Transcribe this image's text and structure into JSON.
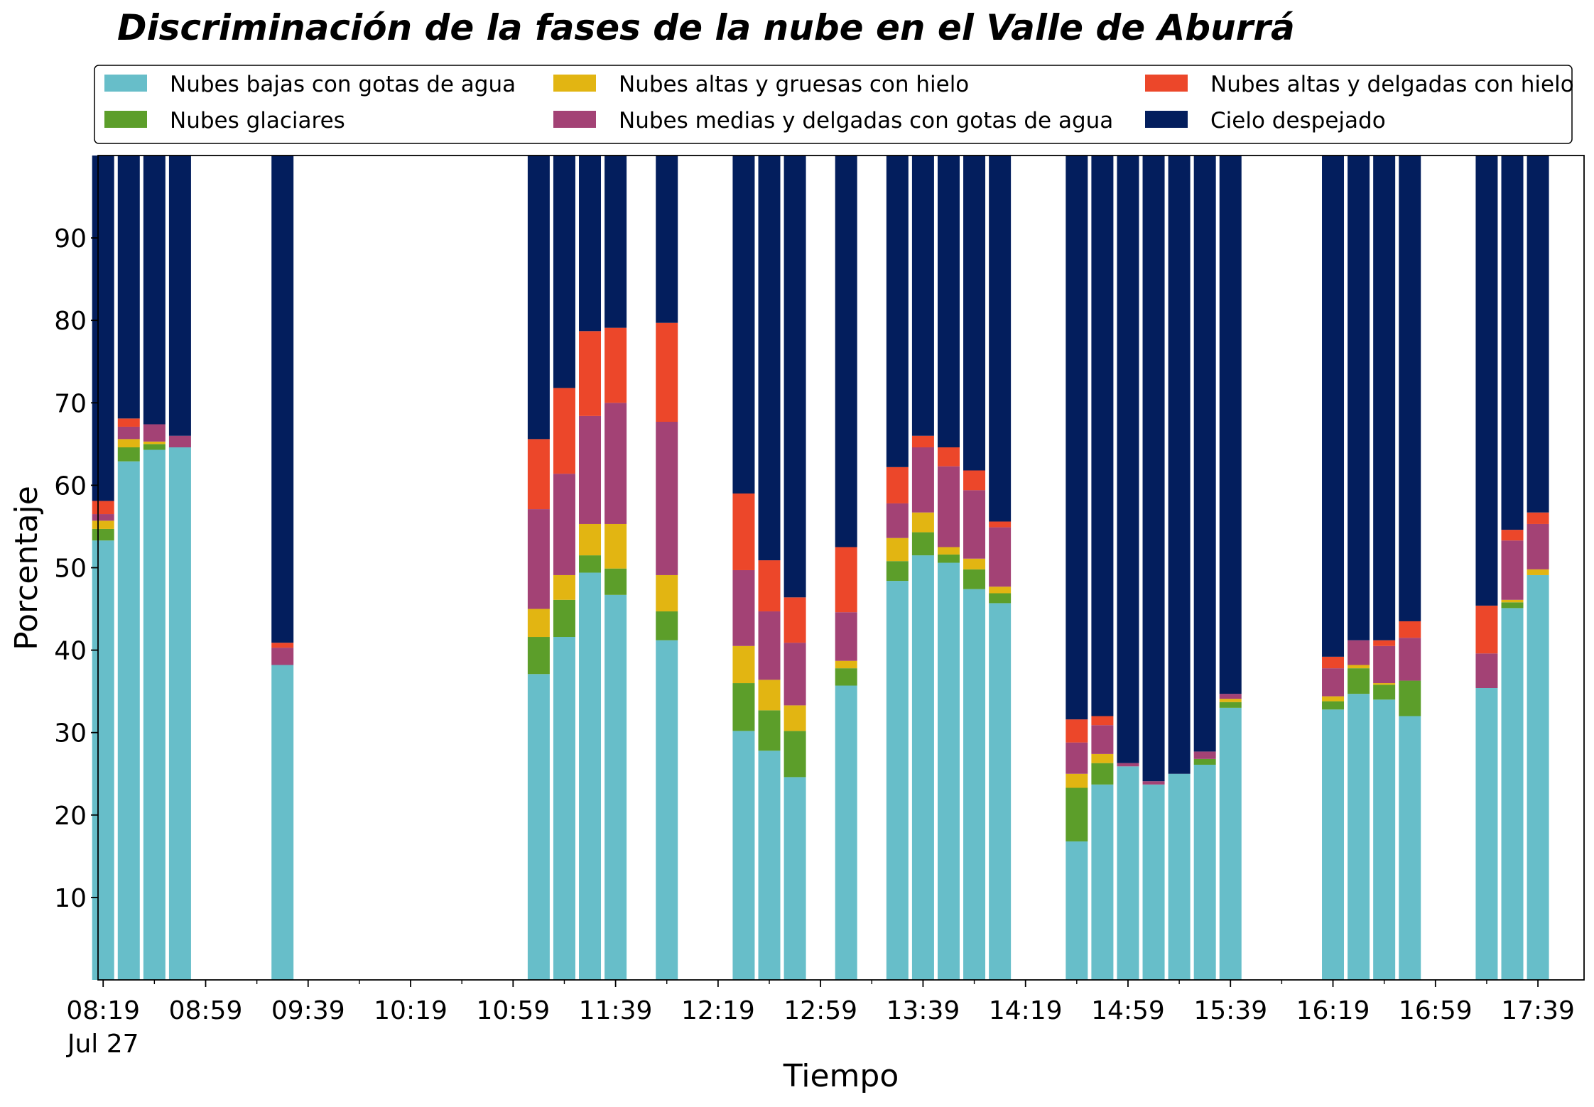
{
  "chart_data": {
    "type": "bar",
    "stacked": true,
    "title": "Discriminación de la fases de la nube en el Valle de Aburrá",
    "xlabel": "Tiempo",
    "ylabel": "Porcentaje",
    "ylim": [
      0,
      100
    ],
    "yticks": [
      10,
      20,
      30,
      40,
      50,
      60,
      70,
      80,
      90
    ],
    "xlim_minutes": [
      497,
      1077
    ],
    "x_unit": "minutes since 00:00",
    "xticks": [
      {
        "minute": 499,
        "label": "08:19",
        "sublabel": "Jul 27"
      },
      {
        "minute": 539,
        "label": "08:59"
      },
      {
        "minute": 579,
        "label": "09:39"
      },
      {
        "minute": 619,
        "label": "10:19"
      },
      {
        "minute": 659,
        "label": "10:59"
      },
      {
        "minute": 699,
        "label": "11:39"
      },
      {
        "minute": 739,
        "label": "12:19"
      },
      {
        "minute": 779,
        "label": "12:59"
      },
      {
        "minute": 819,
        "label": "13:39"
      },
      {
        "minute": 859,
        "label": "14:19"
      },
      {
        "minute": 899,
        "label": "14:59"
      },
      {
        "minute": 939,
        "label": "15:39"
      },
      {
        "minute": 979,
        "label": "16:19"
      },
      {
        "minute": 1019,
        "label": "16:59"
      },
      {
        "minute": 1059,
        "label": "17:39"
      }
    ],
    "legend_placement": "top, above plot, 3 columns",
    "series": [
      {
        "name": "Nubes bajas con gotas de agua",
        "color": "#67BEC9"
      },
      {
        "name": "Nubes glaciares",
        "color": "#5C9E2A"
      },
      {
        "name": "Nubes altas y gruesas con hielo",
        "color": "#E2B512"
      },
      {
        "name": "Nubes medias y delgadas con gotas de agua",
        "color": "#A34275"
      },
      {
        "name": "Nubes altas y delgadas con hielo",
        "color": "#EC472A"
      },
      {
        "name": "Cielo despejado",
        "color": "#031E5D"
      }
    ],
    "bars": [
      {
        "time": "08:19",
        "values": [
          53.3,
          1.4,
          1.0,
          0.8,
          1.6,
          41.9
        ]
      },
      {
        "time": "08:29",
        "values": [
          62.9,
          1.7,
          1.0,
          1.5,
          1.0,
          31.9
        ]
      },
      {
        "time": "08:39",
        "values": [
          64.3,
          0.7,
          0.3,
          2.1,
          0.0,
          32.6
        ]
      },
      {
        "time": "08:49",
        "values": [
          64.6,
          0.0,
          0.0,
          1.4,
          0.0,
          34.0
        ]
      },
      {
        "time": "09:29",
        "values": [
          38.2,
          0.0,
          0.0,
          2.1,
          0.6,
          59.1
        ]
      },
      {
        "time": "11:09",
        "values": [
          37.1,
          4.5,
          3.4,
          12.1,
          8.5,
          34.4
        ]
      },
      {
        "time": "11:19",
        "values": [
          41.6,
          4.5,
          3.0,
          12.3,
          10.4,
          28.2
        ]
      },
      {
        "time": "11:29",
        "values": [
          49.4,
          2.1,
          3.8,
          13.1,
          10.3,
          21.3
        ]
      },
      {
        "time": "11:39",
        "values": [
          46.7,
          3.2,
          5.4,
          14.7,
          9.1,
          20.9
        ]
      },
      {
        "time": "11:59",
        "values": [
          41.2,
          3.5,
          4.4,
          18.6,
          12.0,
          20.3
        ]
      },
      {
        "time": "12:29",
        "values": [
          30.2,
          5.8,
          4.5,
          9.2,
          9.3,
          41.0
        ]
      },
      {
        "time": "12:39",
        "values": [
          27.8,
          4.9,
          3.7,
          8.3,
          6.2,
          49.1
        ]
      },
      {
        "time": "12:49",
        "values": [
          24.6,
          5.6,
          3.1,
          7.6,
          5.5,
          53.6
        ]
      },
      {
        "time": "13:09",
        "values": [
          35.7,
          2.1,
          0.9,
          5.9,
          7.9,
          47.5
        ]
      },
      {
        "time": "13:29",
        "values": [
          48.4,
          2.4,
          2.8,
          4.2,
          4.4,
          37.8
        ]
      },
      {
        "time": "13:39",
        "values": [
          51.5,
          2.8,
          2.4,
          7.9,
          1.4,
          34.0
        ]
      },
      {
        "time": "13:49",
        "values": [
          50.6,
          1.0,
          0.9,
          9.8,
          2.3,
          35.4
        ]
      },
      {
        "time": "13:59",
        "values": [
          47.4,
          2.4,
          1.3,
          8.3,
          2.4,
          38.2
        ]
      },
      {
        "time": "14:09",
        "values": [
          45.7,
          1.2,
          0.8,
          7.2,
          0.7,
          44.4
        ]
      },
      {
        "time": "14:39",
        "values": [
          16.8,
          6.5,
          1.7,
          3.8,
          2.8,
          68.4
        ]
      },
      {
        "time": "14:49",
        "values": [
          23.7,
          2.6,
          1.1,
          3.5,
          1.1,
          68.0
        ]
      },
      {
        "time": "14:59",
        "values": [
          25.9,
          0.0,
          0.0,
          0.4,
          0.0,
          73.7
        ]
      },
      {
        "time": "15:09",
        "values": [
          23.7,
          0.0,
          0.0,
          0.4,
          0.0,
          75.9
        ]
      },
      {
        "time": "15:19",
        "values": [
          25.0,
          0.0,
          0.0,
          0.0,
          0.0,
          75.0
        ]
      },
      {
        "time": "15:29",
        "values": [
          26.1,
          0.7,
          0.0,
          0.9,
          0.0,
          72.3
        ]
      },
      {
        "time": "15:39",
        "values": [
          33.0,
          0.7,
          0.4,
          0.6,
          0.0,
          65.3
        ]
      },
      {
        "time": "16:19",
        "values": [
          32.8,
          1.0,
          0.6,
          3.4,
          1.4,
          60.8
        ]
      },
      {
        "time": "16:29",
        "values": [
          34.7,
          3.1,
          0.4,
          3.0,
          0.0,
          58.8
        ]
      },
      {
        "time": "16:39",
        "values": [
          34.0,
          1.8,
          0.2,
          4.5,
          0.7,
          58.8
        ]
      },
      {
        "time": "16:49",
        "values": [
          32.0,
          4.3,
          0.0,
          5.2,
          2.0,
          56.5
        ]
      },
      {
        "time": "17:19",
        "values": [
          35.4,
          0.0,
          0.0,
          4.2,
          5.8,
          54.6
        ]
      },
      {
        "time": "17:29",
        "values": [
          45.1,
          0.7,
          0.3,
          7.2,
          1.3,
          45.4
        ]
      },
      {
        "time": "17:39",
        "values": [
          49.1,
          0.0,
          0.7,
          5.5,
          1.4,
          43.3
        ]
      }
    ]
  }
}
